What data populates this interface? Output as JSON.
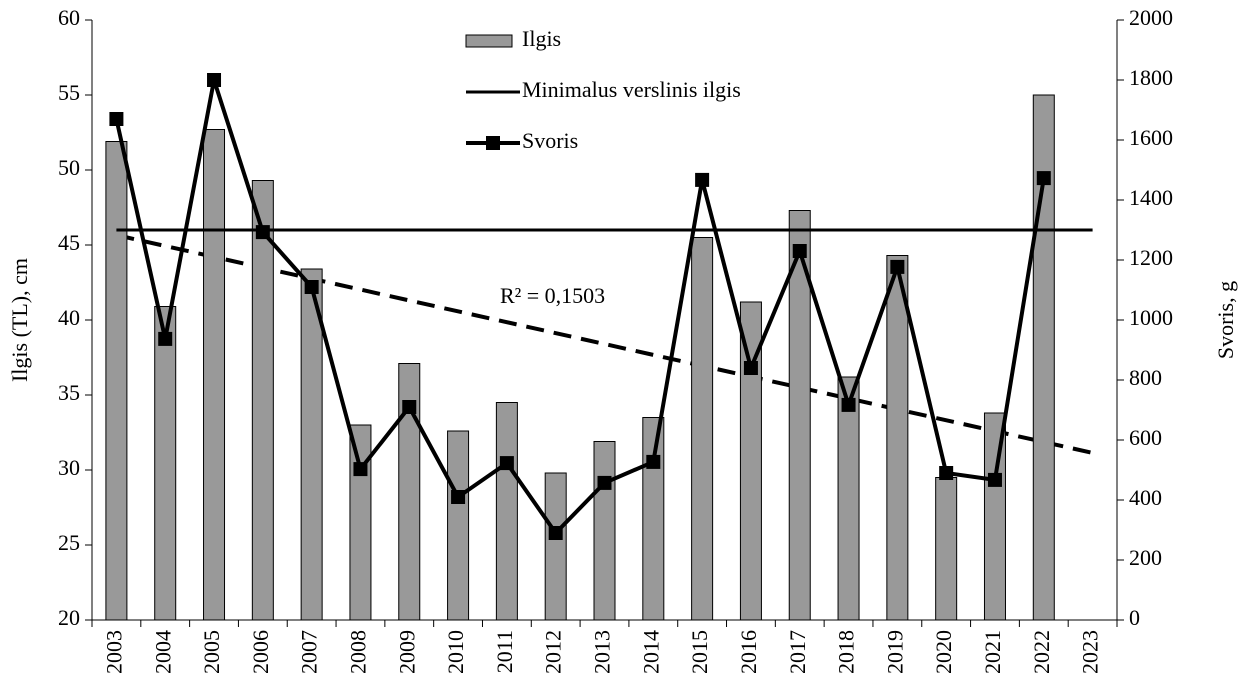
{
  "chart_data": {
    "type": "bar",
    "categories": [
      "2003",
      "2004",
      "2005",
      "2006",
      "2007",
      "2008",
      "2009",
      "2010",
      "2011",
      "2012",
      "2013",
      "2014",
      "2015",
      "2016",
      "2017",
      "2018",
      "2019",
      "2020",
      "2021",
      "2022",
      "2023"
    ],
    "series": [
      {
        "name": "Ilgis",
        "type": "bar",
        "color": "#999999",
        "values": [
          51.9,
          40.9,
          52.7,
          49.3,
          43.4,
          33.0,
          37.1,
          32.6,
          34.5,
          29.8,
          31.9,
          33.5,
          45.5,
          41.2,
          47.3,
          36.2,
          44.3,
          29.5,
          33.8,
          55.0,
          null
        ]
      },
      {
        "name": "Minimalus verslinis ilgis",
        "type": "line",
        "color": "#000000",
        "values": [
          46,
          46,
          46,
          46,
          46,
          46,
          46,
          46,
          46,
          46,
          46,
          46,
          46,
          46,
          46,
          46,
          46,
          46,
          46,
          46,
          46
        ]
      },
      {
        "name": "Svoris",
        "type": "line",
        "axis": "y2",
        "color": "#000000",
        "marker": "square",
        "values": [
          1670,
          937,
          1800,
          1293,
          1110,
          503,
          710,
          410,
          523,
          290,
          457,
          527,
          1467,
          840,
          1230,
          717,
          1177,
          490,
          467,
          1473,
          null
        ]
      }
    ],
    "trendline": {
      "axis": "y2",
      "values": [
        1283,
        557
      ],
      "label": "R² = 0,1503"
    },
    "ylabel": "Ilgis (TL), cm",
    "y2label": "Svoris, g",
    "ylim": [
      20,
      60
    ],
    "yticks": [
      20,
      25,
      30,
      35,
      40,
      45,
      50,
      55,
      60
    ],
    "y2lim": [
      0,
      2000
    ],
    "y2ticks": [
      0,
      200,
      400,
      600,
      800,
      1000,
      1200,
      1400,
      1600,
      1800,
      2000
    ],
    "legend": "top"
  }
}
